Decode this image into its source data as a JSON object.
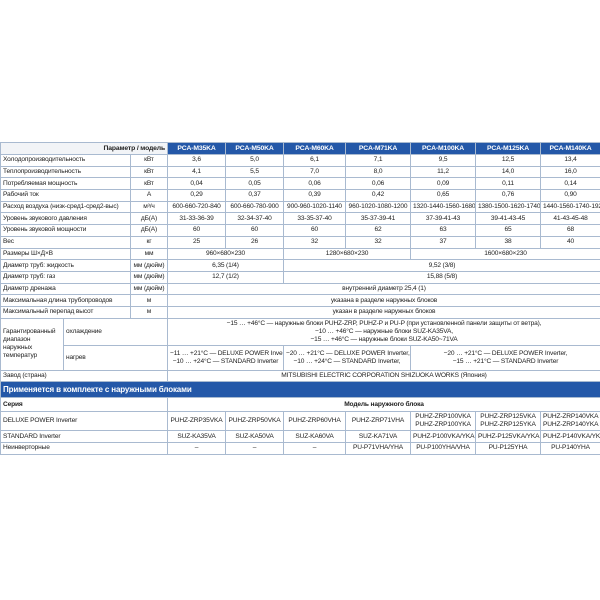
{
  "header": {
    "param_label": "Параметр / модель",
    "models": [
      "PCA-M35KA",
      "PCA-M50KA",
      "PCA-M60KA",
      "PCA-M71KA",
      "PCA-M100KA",
      "PCA-M125KA",
      "PCA-M140KA"
    ]
  },
  "spec_rows": [
    {
      "label": "Холодопроизводительность",
      "unit": "кВт",
      "cells": [
        [
          "3,6",
          1
        ],
        [
          "5,0",
          1
        ],
        [
          "6,1",
          1
        ],
        [
          "7,1",
          1
        ],
        [
          "9,5",
          1
        ],
        [
          "12,5",
          1
        ],
        [
          "13,4",
          1
        ]
      ]
    },
    {
      "label": "Теплопроизводительность",
      "unit": "кВт",
      "cells": [
        [
          "4,1",
          1
        ],
        [
          "5,5",
          1
        ],
        [
          "7,0",
          1
        ],
        [
          "8,0",
          1
        ],
        [
          "11,2",
          1
        ],
        [
          "14,0",
          1
        ],
        [
          "16,0",
          1
        ]
      ]
    },
    {
      "label": "Потребляемая мощность",
      "unit": "кВт",
      "cells": [
        [
          "0,04",
          1
        ],
        [
          "0,05",
          1
        ],
        [
          "0,06",
          1
        ],
        [
          "0,06",
          1
        ],
        [
          "0,09",
          1
        ],
        [
          "0,11",
          1
        ],
        [
          "0,14",
          1
        ]
      ]
    },
    {
      "label": "Рабочий ток",
      "unit": "А",
      "cells": [
        [
          "0,29",
          1
        ],
        [
          "0,37",
          1
        ],
        [
          "0,39",
          1
        ],
        [
          "0,42",
          1
        ],
        [
          "0,65",
          1
        ],
        [
          "0,76",
          1
        ],
        [
          "0,90",
          1
        ]
      ]
    },
    {
      "label": "Расход воздуха (низк-сред1-сред2-выс)",
      "unit": "м³/ч",
      "cells": [
        [
          "600-660-720-840",
          1
        ],
        [
          "600-660-780-900",
          1
        ],
        [
          "900-960-1020-1140",
          1
        ],
        [
          "960-1020-1080-1200",
          1
        ],
        [
          "1320-1440-1560-1680",
          1
        ],
        [
          "1380-1500-1620-1740",
          1
        ],
        [
          "1440-1560-1740-1920",
          1
        ]
      ]
    },
    {
      "label": "Уровень звукового давления",
      "unit": "дБ(А)",
      "cells": [
        [
          "31-33-36-39",
          1
        ],
        [
          "32-34-37-40",
          1
        ],
        [
          "33-35-37-40",
          1
        ],
        [
          "35-37-39-41",
          1
        ],
        [
          "37-39-41-43",
          1
        ],
        [
          "39-41-43-45",
          1
        ],
        [
          "41-43-45-48",
          1
        ]
      ]
    },
    {
      "label": "Уровень звуковой мощности",
      "unit": "дБ(А)",
      "cells": [
        [
          "60",
          1
        ],
        [
          "60",
          1
        ],
        [
          "60",
          1
        ],
        [
          "62",
          1
        ],
        [
          "63",
          1
        ],
        [
          "65",
          1
        ],
        [
          "68",
          1
        ]
      ]
    },
    {
      "label": "Вес",
      "unit": "кг",
      "cells": [
        [
          "25",
          1
        ],
        [
          "26",
          1
        ],
        [
          "32",
          1
        ],
        [
          "32",
          1
        ],
        [
          "37",
          1
        ],
        [
          "38",
          1
        ],
        [
          "40",
          1
        ]
      ]
    },
    {
      "label": "Размеры Ш×Д×В",
      "unit": "мм",
      "cells": [
        [
          "960×680×230",
          2
        ],
        [
          "1280×680×230",
          2
        ],
        [
          "1600×680×230",
          3
        ]
      ]
    },
    {
      "label": "Диаметр труб: жидкость",
      "unit": "мм (дюйм)",
      "cells": [
        [
          "6,35 (1/4)",
          2
        ],
        [
          "9,52 (3/8)",
          5
        ]
      ]
    },
    {
      "label": "Диаметр труб: газ",
      "unit": "мм (дюйм)",
      "cells": [
        [
          "12,7 (1/2)",
          2
        ],
        [
          "15,88 (5/8)",
          5
        ]
      ]
    },
    {
      "label": "Диаметр дренажа",
      "unit": "мм (дюйм)",
      "cells": [
        [
          "внутренний диаметр 25,4 (1)",
          7
        ]
      ]
    },
    {
      "label": "Максимальная длина трубопроводов",
      "unit": "м",
      "cells": [
        [
          "указана в разделе наружных блоков",
          7
        ]
      ]
    },
    {
      "label": "Максимальный перепад высот",
      "unit": "м",
      "cells": [
        [
          "указан в разделе наружных блоков",
          7
        ]
      ]
    }
  ],
  "temperature": {
    "label": "Гарантированный диапазон наружных температур",
    "cooling_label": "охлаждение",
    "cooling_lines": [
      "−15 … +46°C — наружные блоки PUHZ-ZRP, PUHZ-P и PU-P (при установленной панели защиты от ветра),",
      "−10 … +46°C — наружные блоки SUZ-KA35VA,",
      "−15 … +46°C — наружные блоки SUZ-KA50~71VA"
    ],
    "heating_label": "нагрев",
    "heating_cells": [
      [
        "−11 … +21°C — DELUXE POWER Inverter,",
        "−10 … +24°C — STANDARD Inverter"
      ],
      [
        "−20 … +21°C — DELUXE POWER Inverter,",
        "−10 … +24°C — STANDARD Inverter,"
      ],
      [
        "−20 … +21°C — DELUXE POWER Inverter,",
        "−15 … +21°C — STANDARD Inverter"
      ]
    ]
  },
  "factory": {
    "label": "Завод (страна)",
    "value": "MITSUBISHI ELECTRIC CORPORATION SHIZUOKA WORKS (Япония)"
  },
  "outdoor": {
    "section_title": "Применяется в комплекте с наружными блоками",
    "series_label": "Серия",
    "model_label": "Модель наружного блока",
    "rows": [
      {
        "label": "DELUXE POWER Inverter",
        "cells": [
          "PUHZ-ZRP35VKA",
          "PUHZ-ZRP50VKA",
          "PUHZ-ZRP60VHA",
          "PUHZ-ZRP71VHA",
          "PUHZ-ZRP100VKA\nPUHZ-ZRP100YKA",
          "PUHZ-ZRP125VKA\nPUHZ-ZRP125YKA",
          "PUHZ-ZRP140VKA\nPUHZ-ZRP140YKA"
        ]
      },
      {
        "label": "STANDARD Inverter",
        "cells": [
          "SUZ-KA35VA",
          "SUZ-KA50VA",
          "SUZ-KA60VA",
          "SUZ-KA71VA",
          "PUHZ-P100VKA/YKA",
          "PUHZ-P125VKA/YKA",
          "PUHZ-P140VKA/YKA"
        ]
      },
      {
        "label": "Неинверторные",
        "cells": [
          "–",
          "–",
          "–",
          "PU-P71VHA/YHA",
          "PU-P100YHA/VHA",
          "PU-P125YHA",
          "PU-P140YHA"
        ]
      }
    ]
  },
  "colors": {
    "header_blue": "#2458a8",
    "border": "#a9bad0"
  }
}
